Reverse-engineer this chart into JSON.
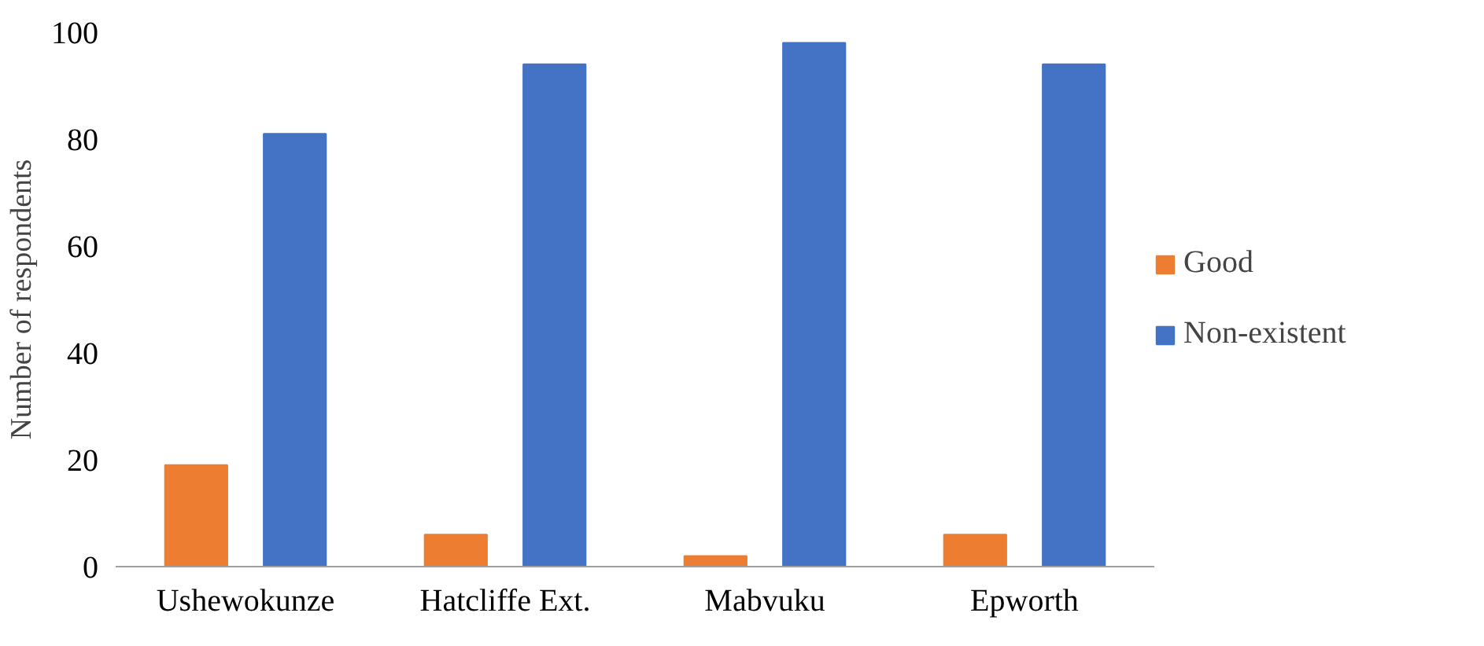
{
  "chart_data": {
    "type": "bar",
    "ylabel": "Number of respondents",
    "categories": [
      "Ushewokunze",
      "Hatcliffe Ext.",
      "Mabvuku",
      "Epworth"
    ],
    "series": [
      {
        "name": "Good",
        "color": "#ed7d31",
        "values": [
          19,
          6,
          2,
          6
        ]
      },
      {
        "name": "Non-existent",
        "color": "#4472c4",
        "values": [
          81,
          94,
          98,
          94
        ]
      }
    ],
    "ylim": [
      0,
      100
    ],
    "yticks": [
      0,
      20,
      40,
      60,
      80,
      100
    ],
    "grid": false,
    "legend": "right"
  }
}
